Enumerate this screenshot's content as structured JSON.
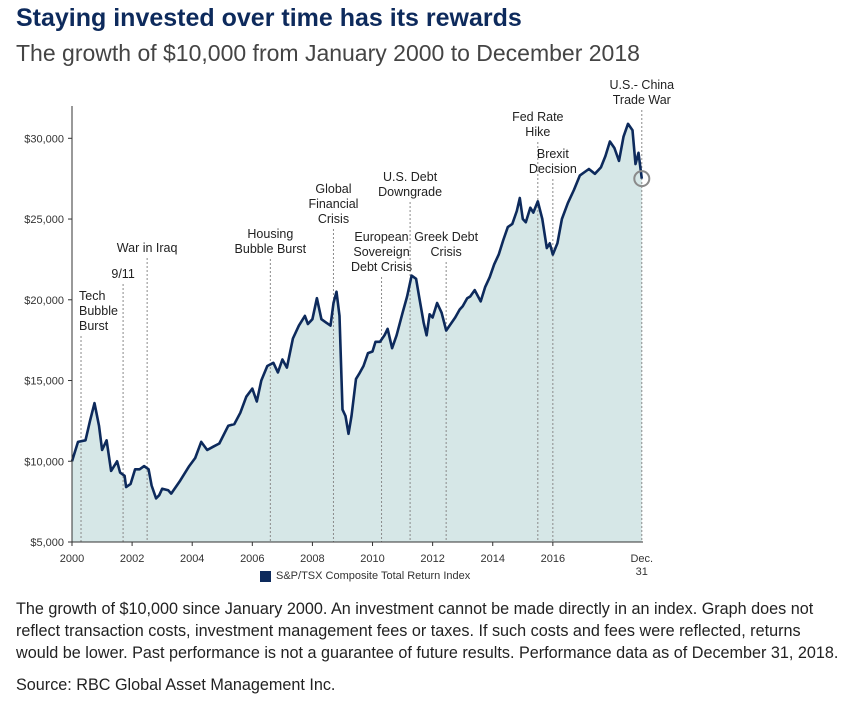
{
  "header": {
    "title": "Staying invested over time has its rewards",
    "subtitle": "The growth of $10,000 from January 2000 to December 2018"
  },
  "colors": {
    "title": "#0d2a5c",
    "line": "#0d2a5c",
    "area": "#d6e7e7",
    "marker": "#8a8a8a"
  },
  "chart_data": {
    "type": "area",
    "series": [
      {
        "name": "S&P/TSX Composite Total Return Index",
        "points": [
          [
            2000.0,
            10000
          ],
          [
            2000.2,
            11200
          ],
          [
            2000.45,
            11300
          ],
          [
            2000.6,
            12500
          ],
          [
            2000.75,
            13600
          ],
          [
            2000.9,
            12200
          ],
          [
            2001.0,
            10700
          ],
          [
            2001.15,
            11300
          ],
          [
            2001.3,
            9400
          ],
          [
            2001.5,
            10000
          ],
          [
            2001.6,
            9300
          ],
          [
            2001.75,
            9100
          ],
          [
            2001.8,
            8400
          ],
          [
            2001.95,
            8600
          ],
          [
            2002.1,
            9500
          ],
          [
            2002.25,
            9500
          ],
          [
            2002.4,
            9700
          ],
          [
            2002.55,
            9500
          ],
          [
            2002.65,
            8500
          ],
          [
            2002.8,
            7700
          ],
          [
            2002.9,
            7900
          ],
          [
            2003.0,
            8300
          ],
          [
            2003.2,
            8200
          ],
          [
            2003.3,
            8000
          ],
          [
            2003.6,
            8800
          ],
          [
            2003.9,
            9700
          ],
          [
            2004.1,
            10200
          ],
          [
            2004.3,
            11200
          ],
          [
            2004.5,
            10700
          ],
          [
            2004.7,
            10900
          ],
          [
            2004.9,
            11100
          ],
          [
            2005.2,
            12200
          ],
          [
            2005.4,
            12300
          ],
          [
            2005.6,
            13000
          ],
          [
            2005.8,
            14000
          ],
          [
            2006.0,
            14500
          ],
          [
            2006.15,
            13700
          ],
          [
            2006.3,
            15000
          ],
          [
            2006.5,
            15900
          ],
          [
            2006.7,
            16100
          ],
          [
            2006.85,
            15500
          ],
          [
            2007.0,
            16300
          ],
          [
            2007.15,
            15800
          ],
          [
            2007.35,
            17600
          ],
          [
            2007.55,
            18400
          ],
          [
            2007.75,
            19000
          ],
          [
            2007.85,
            18500
          ],
          [
            2008.0,
            18800
          ],
          [
            2008.15,
            20100
          ],
          [
            2008.3,
            18800
          ],
          [
            2008.45,
            18600
          ],
          [
            2008.6,
            18400
          ],
          [
            2008.7,
            19800
          ],
          [
            2008.8,
            20500
          ],
          [
            2008.9,
            19000
          ],
          [
            2009.0,
            13200
          ],
          [
            2009.1,
            12800
          ],
          [
            2009.2,
            11700
          ],
          [
            2009.3,
            12800
          ],
          [
            2009.45,
            15100
          ],
          [
            2009.55,
            15400
          ],
          [
            2009.7,
            15900
          ],
          [
            2009.85,
            16700
          ],
          [
            2010.0,
            16800
          ],
          [
            2010.1,
            17400
          ],
          [
            2010.25,
            17400
          ],
          [
            2010.4,
            17800
          ],
          [
            2010.5,
            18200
          ],
          [
            2010.65,
            17000
          ],
          [
            2010.8,
            17800
          ],
          [
            2011.0,
            19200
          ],
          [
            2011.15,
            20200
          ],
          [
            2011.3,
            21500
          ],
          [
            2011.45,
            21300
          ],
          [
            2011.55,
            20200
          ],
          [
            2011.7,
            18600
          ],
          [
            2011.8,
            17800
          ],
          [
            2011.9,
            19100
          ],
          [
            2012.0,
            18900
          ],
          [
            2012.15,
            19800
          ],
          [
            2012.3,
            19200
          ],
          [
            2012.45,
            18100
          ],
          [
            2012.6,
            18500
          ],
          [
            2012.75,
            18900
          ],
          [
            2012.9,
            19400
          ],
          [
            2013.0,
            19600
          ],
          [
            2013.15,
            20100
          ],
          [
            2013.25,
            20200
          ],
          [
            2013.4,
            20600
          ],
          [
            2013.6,
            19900
          ],
          [
            2013.75,
            20800
          ],
          [
            2013.9,
            21400
          ],
          [
            2014.05,
            22200
          ],
          [
            2014.2,
            22800
          ],
          [
            2014.35,
            23700
          ],
          [
            2014.5,
            24500
          ],
          [
            2014.65,
            24700
          ],
          [
            2014.8,
            25500
          ],
          [
            2014.9,
            26300
          ],
          [
            2015.0,
            25000
          ],
          [
            2015.1,
            24800
          ],
          [
            2015.25,
            25700
          ],
          [
            2015.35,
            25400
          ],
          [
            2015.5,
            26100
          ],
          [
            2015.65,
            25000
          ],
          [
            2015.8,
            23200
          ],
          [
            2015.9,
            23500
          ],
          [
            2016.0,
            22800
          ],
          [
            2016.15,
            23500
          ],
          [
            2016.3,
            25000
          ],
          [
            2016.5,
            26000
          ],
          [
            2016.7,
            26800
          ],
          [
            2016.9,
            27700
          ],
          [
            2017.2,
            28100
          ],
          [
            2017.4,
            27800
          ],
          [
            2017.6,
            28200
          ],
          [
            2017.75,
            28900
          ],
          [
            2017.9,
            29800
          ],
          [
            2018.05,
            29400
          ],
          [
            2018.2,
            28600
          ],
          [
            2018.35,
            30100
          ],
          [
            2018.5,
            30900
          ],
          [
            2018.65,
            30500
          ],
          [
            2018.75,
            28400
          ],
          [
            2018.85,
            29100
          ],
          [
            2018.96,
            27500
          ]
        ]
      }
    ],
    "x_ticks": [
      "2000",
      "2002",
      "2004",
      "2006",
      "2008",
      "2010",
      "2012",
      "2014",
      "2016"
    ],
    "x_end_label": [
      "Dec.",
      "31"
    ],
    "y_ticks": [
      "$5,000",
      "$10,000",
      "$15,000",
      "$20,000",
      "$25,000",
      "$30,000"
    ],
    "xlim": [
      2000,
      2019
    ],
    "ylim": [
      5000,
      32000
    ],
    "grid": false,
    "legend_position": "bottom-center",
    "legend_label": "S&P/TSX Composite Total Return Index",
    "annotations": [
      {
        "x": 2000.3,
        "lines": [
          "Tech",
          "Bubble",
          "Burst"
        ],
        "align": "start"
      },
      {
        "x": 2001.7,
        "lines": [
          "9/11"
        ],
        "align": "middle"
      },
      {
        "x": 2002.5,
        "lines": [
          "War in Iraq"
        ],
        "align": "middle"
      },
      {
        "x": 2006.6,
        "lines": [
          "Housing",
          "Bubble Burst"
        ],
        "align": "middle"
      },
      {
        "x": 2008.7,
        "lines": [
          "Global",
          "Financial",
          "Crisis"
        ],
        "align": "middle"
      },
      {
        "x": 2010.3,
        "lines": [
          "European",
          "Sovereign",
          "Debt Crisis"
        ],
        "align": "middle"
      },
      {
        "x": 2011.25,
        "lines": [
          "U.S. Debt",
          "Downgrade"
        ],
        "align": "middle"
      },
      {
        "x": 2012.45,
        "lines": [
          "Greek Debt",
          "Crisis"
        ],
        "align": "middle"
      },
      {
        "x": 2015.5,
        "lines": [
          "Fed Rate",
          "Hike"
        ],
        "align": "middle"
      },
      {
        "x": 2016.0,
        "lines": [
          "Brexit",
          "Decision"
        ],
        "align": "middle"
      },
      {
        "x": 2018.96,
        "lines": [
          "U.S.- China",
          "Trade War"
        ],
        "align": "middle"
      }
    ]
  },
  "footnote": "The growth of $10,000 since January 2000. An investment cannot be made directly in an index. Graph does not reflect transaction costs, investment management fees or taxes. If such costs and fees were reflected, returns would be lower. Past performance is not a guarantee of future results. Performance data as of December 31, 2018.",
  "source": "Source: RBC Global Asset Management Inc."
}
